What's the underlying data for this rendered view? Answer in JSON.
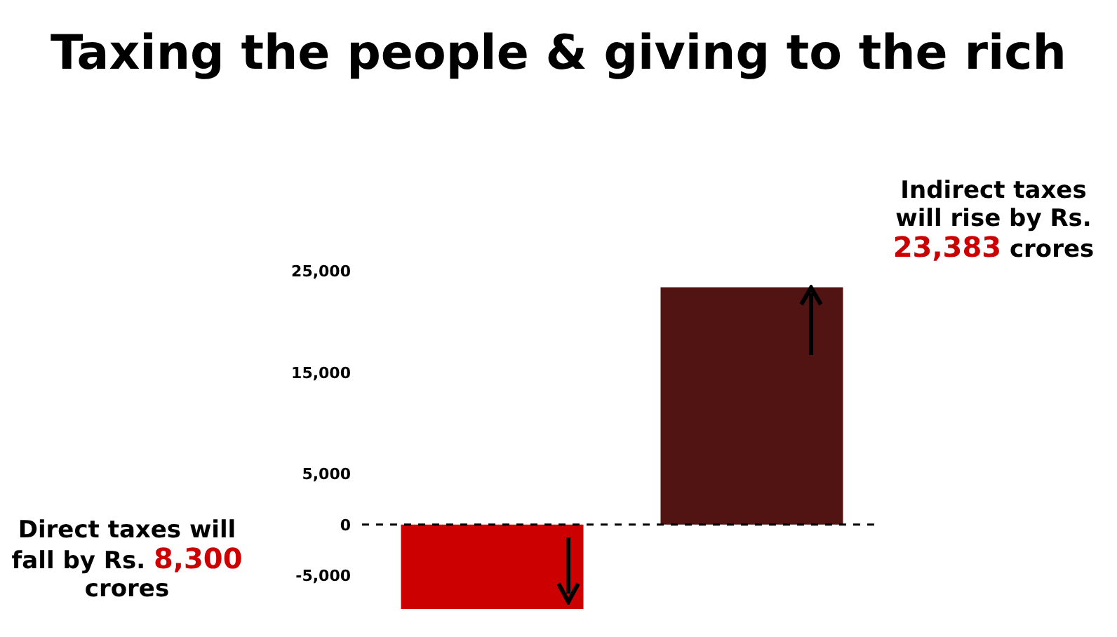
{
  "chart_data": {
    "type": "bar",
    "title": "Taxing the people & giving to the rich",
    "categories": [
      null,
      null
    ],
    "values": [
      -8300,
      23383
    ],
    "colors": [
      "#cc0000",
      "#521313"
    ],
    "ylim": [
      -8300,
      25000
    ],
    "yticks": [
      {
        "value": -5000,
        "label": "-5,000"
      },
      0,
      {
        "value": 5000,
        "label": "5,000"
      },
      {
        "value": 15000,
        "label": "15,000"
      },
      {
        "value": 25000,
        "label": "25,000"
      }
    ],
    "ref_lines": [
      {
        "axis": "y",
        "value": 0,
        "color": "#000000",
        "line_style": "dashed"
      }
    ],
    "annotations": [
      "Direct taxes will fall by Rs. 8,300 crores",
      "Indirect taxes will rise by Rs. 23,383 crores"
    ],
    "grid": false,
    "legend": false
  }
}
